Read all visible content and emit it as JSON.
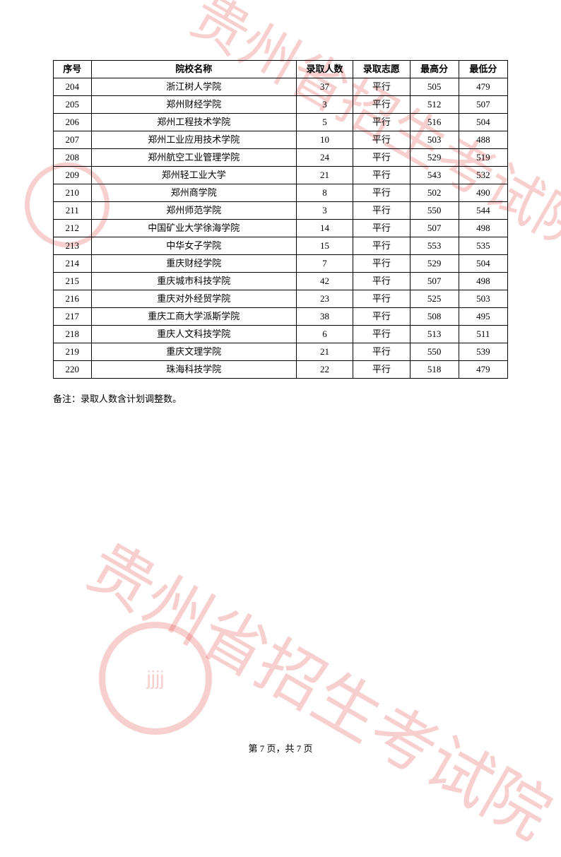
{
  "watermark_text": "贵州省招生考试院",
  "watermark_color": "rgba(222, 63, 63, 0.25)",
  "table": {
    "columns": [
      "序号",
      "院校名称",
      "录取人数",
      "录取志愿",
      "最高分",
      "最低分"
    ],
    "rows": [
      [
        "204",
        "浙江树人学院",
        "37",
        "平行",
        "505",
        "479"
      ],
      [
        "205",
        "郑州财经学院",
        "3",
        "平行",
        "512",
        "507"
      ],
      [
        "206",
        "郑州工程技术学院",
        "5",
        "平行",
        "516",
        "504"
      ],
      [
        "207",
        "郑州工业应用技术学院",
        "10",
        "平行",
        "503",
        "488"
      ],
      [
        "208",
        "郑州航空工业管理学院",
        "24",
        "平行",
        "529",
        "519"
      ],
      [
        "209",
        "郑州轻工业大学",
        "21",
        "平行",
        "543",
        "532"
      ],
      [
        "210",
        "郑州商学院",
        "8",
        "平行",
        "502",
        "490"
      ],
      [
        "211",
        "郑州师范学院",
        "3",
        "平行",
        "550",
        "544"
      ],
      [
        "212",
        "中国矿业大学徐海学院",
        "14",
        "平行",
        "507",
        "498"
      ],
      [
        "213",
        "中华女子学院",
        "15",
        "平行",
        "553",
        "535"
      ],
      [
        "214",
        "重庆财经学院",
        "7",
        "平行",
        "529",
        "504"
      ],
      [
        "215",
        "重庆城市科技学院",
        "42",
        "平行",
        "507",
        "498"
      ],
      [
        "216",
        "重庆对外经贸学院",
        "23",
        "平行",
        "525",
        "503"
      ],
      [
        "217",
        "重庆工商大学派斯学院",
        "38",
        "平行",
        "508",
        "495"
      ],
      [
        "218",
        "重庆人文科技学院",
        "6",
        "平行",
        "513",
        "511"
      ],
      [
        "219",
        "重庆文理学院",
        "21",
        "平行",
        "550",
        "539"
      ],
      [
        "220",
        "珠海科技学院",
        "22",
        "平行",
        "518",
        "479"
      ]
    ]
  },
  "note": "备注：录取人数含计划调整数。",
  "footer": "第 7 页，共 7 页"
}
